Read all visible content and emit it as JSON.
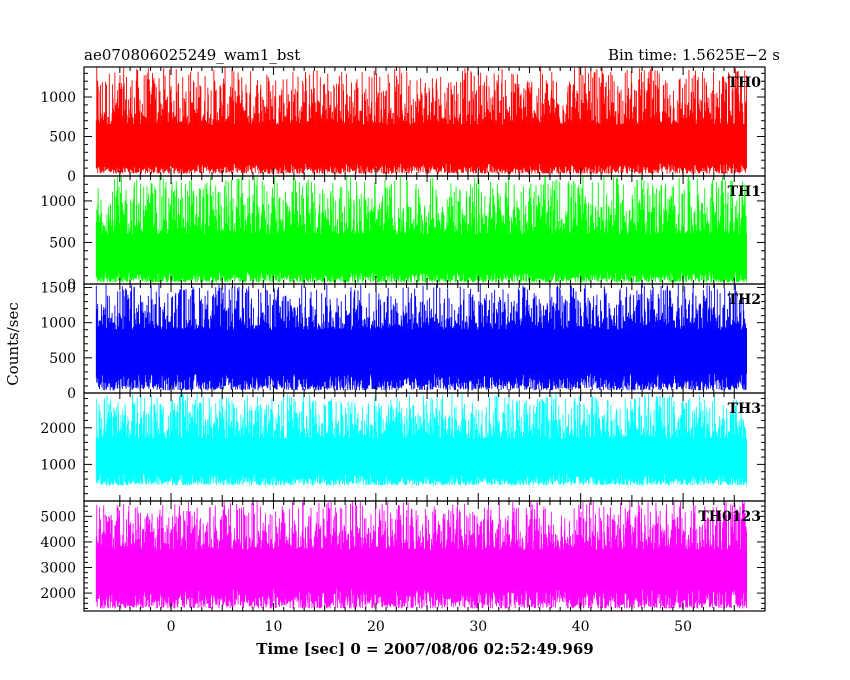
{
  "header": {
    "left_title": "ae070806025249_wam1_bst",
    "right_title": "Bin time: 1.5625E−2 s"
  },
  "axes": {
    "ylabel": "Counts/sec",
    "xlabel": "Time [sec] 0 = 2007/08/06 02:52:49.969"
  },
  "chart_data": [
    {
      "type": "line",
      "name": "TH0",
      "color": "#ff0000",
      "xlim": [
        -8.5,
        58
      ],
      "ylim": [
        0,
        1380
      ],
      "yticks": [
        0,
        500,
        1000
      ],
      "data_xrange": [
        -7.3,
        56.2
      ],
      "band_low": [
        30,
        160
      ],
      "band_high": [
        650,
        1380
      ],
      "typical_level": 600
    },
    {
      "type": "line",
      "name": "TH1",
      "color": "#00ff00",
      "xlim": [
        -8.5,
        58
      ],
      "ylim": [
        0,
        1300
      ],
      "yticks": [
        0,
        500,
        1000
      ],
      "data_xrange": [
        -7.3,
        56.2
      ],
      "band_low": [
        20,
        150
      ],
      "band_high": [
        600,
        1300
      ],
      "typical_level": 520
    },
    {
      "type": "line",
      "name": "TH2",
      "color": "#0000ff",
      "xlim": [
        -8.5,
        58
      ],
      "ylim": [
        0,
        1550
      ],
      "yticks": [
        0,
        500,
        1000,
        1500
      ],
      "data_xrange": [
        -7.3,
        56.2
      ],
      "band_low": [
        40,
        280
      ],
      "band_high": [
        900,
        1550
      ],
      "typical_level": 700
    },
    {
      "type": "line",
      "name": "TH3",
      "color": "#00ffff",
      "xlim": [
        -8.5,
        58
      ],
      "ylim": [
        0,
        2950
      ],
      "yticks": [
        1000,
        2000
      ],
      "data_xrange": [
        -7.3,
        56.2
      ],
      "band_low": [
        430,
        750
      ],
      "band_high": [
        1700,
        2950
      ],
      "typical_level": 1400
    },
    {
      "type": "line",
      "name": "TH0123",
      "color": "#ff00ff",
      "xlim": [
        -8.5,
        58
      ],
      "ylim": [
        1300,
        5600
      ],
      "yticks": [
        2000,
        3000,
        4000,
        5000
      ],
      "xticks": [
        0,
        10,
        20,
        30,
        40,
        50
      ],
      "data_xrange": [
        -7.3,
        56.2
      ],
      "band_low": [
        1400,
        2200
      ],
      "band_high": [
        3700,
        5600
      ],
      "typical_level": 3000
    }
  ]
}
